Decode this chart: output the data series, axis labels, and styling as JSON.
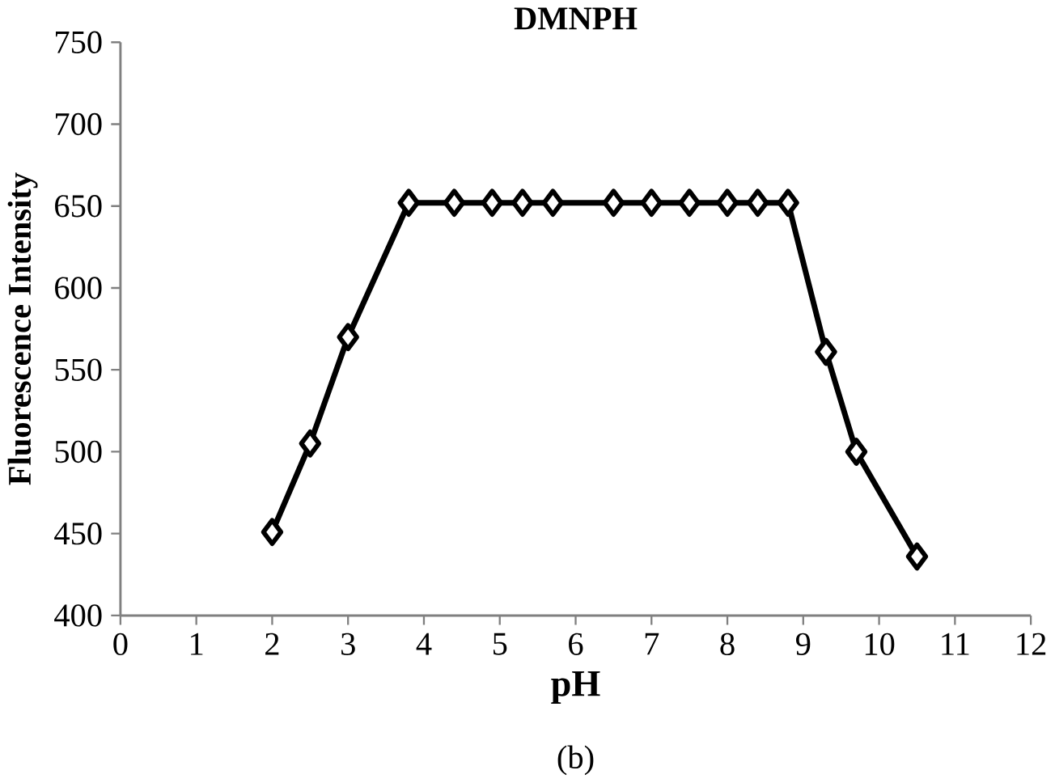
{
  "chart_data": {
    "type": "line",
    "title": "DMNPH",
    "xlabel": "pH",
    "ylabel": "Fluorescence Intensity",
    "annotations": [
      "(b)"
    ],
    "x": [
      2,
      2.5,
      3,
      3.8,
      4.4,
      4.9,
      5.3,
      5.7,
      6.5,
      7,
      7.5,
      8,
      8.4,
      8.8,
      9.3,
      9.7,
      10.5
    ],
    "series": [
      {
        "color": "#000000",
        "values": [
          451,
          505,
          570,
          652,
          652,
          652,
          652,
          652,
          652,
          652,
          652,
          652,
          652,
          652,
          561,
          500,
          436
        ]
      }
    ],
    "xlim": [
      0,
      12
    ],
    "xticks": [
      0,
      1,
      2,
      3,
      4,
      5,
      6,
      7,
      8,
      9,
      10,
      11,
      12
    ],
    "ylim": [
      400,
      750
    ],
    "yticks": [
      400,
      450,
      500,
      550,
      600,
      650,
      700,
      750
    ],
    "marker": "diamond",
    "line_style": "solid"
  }
}
